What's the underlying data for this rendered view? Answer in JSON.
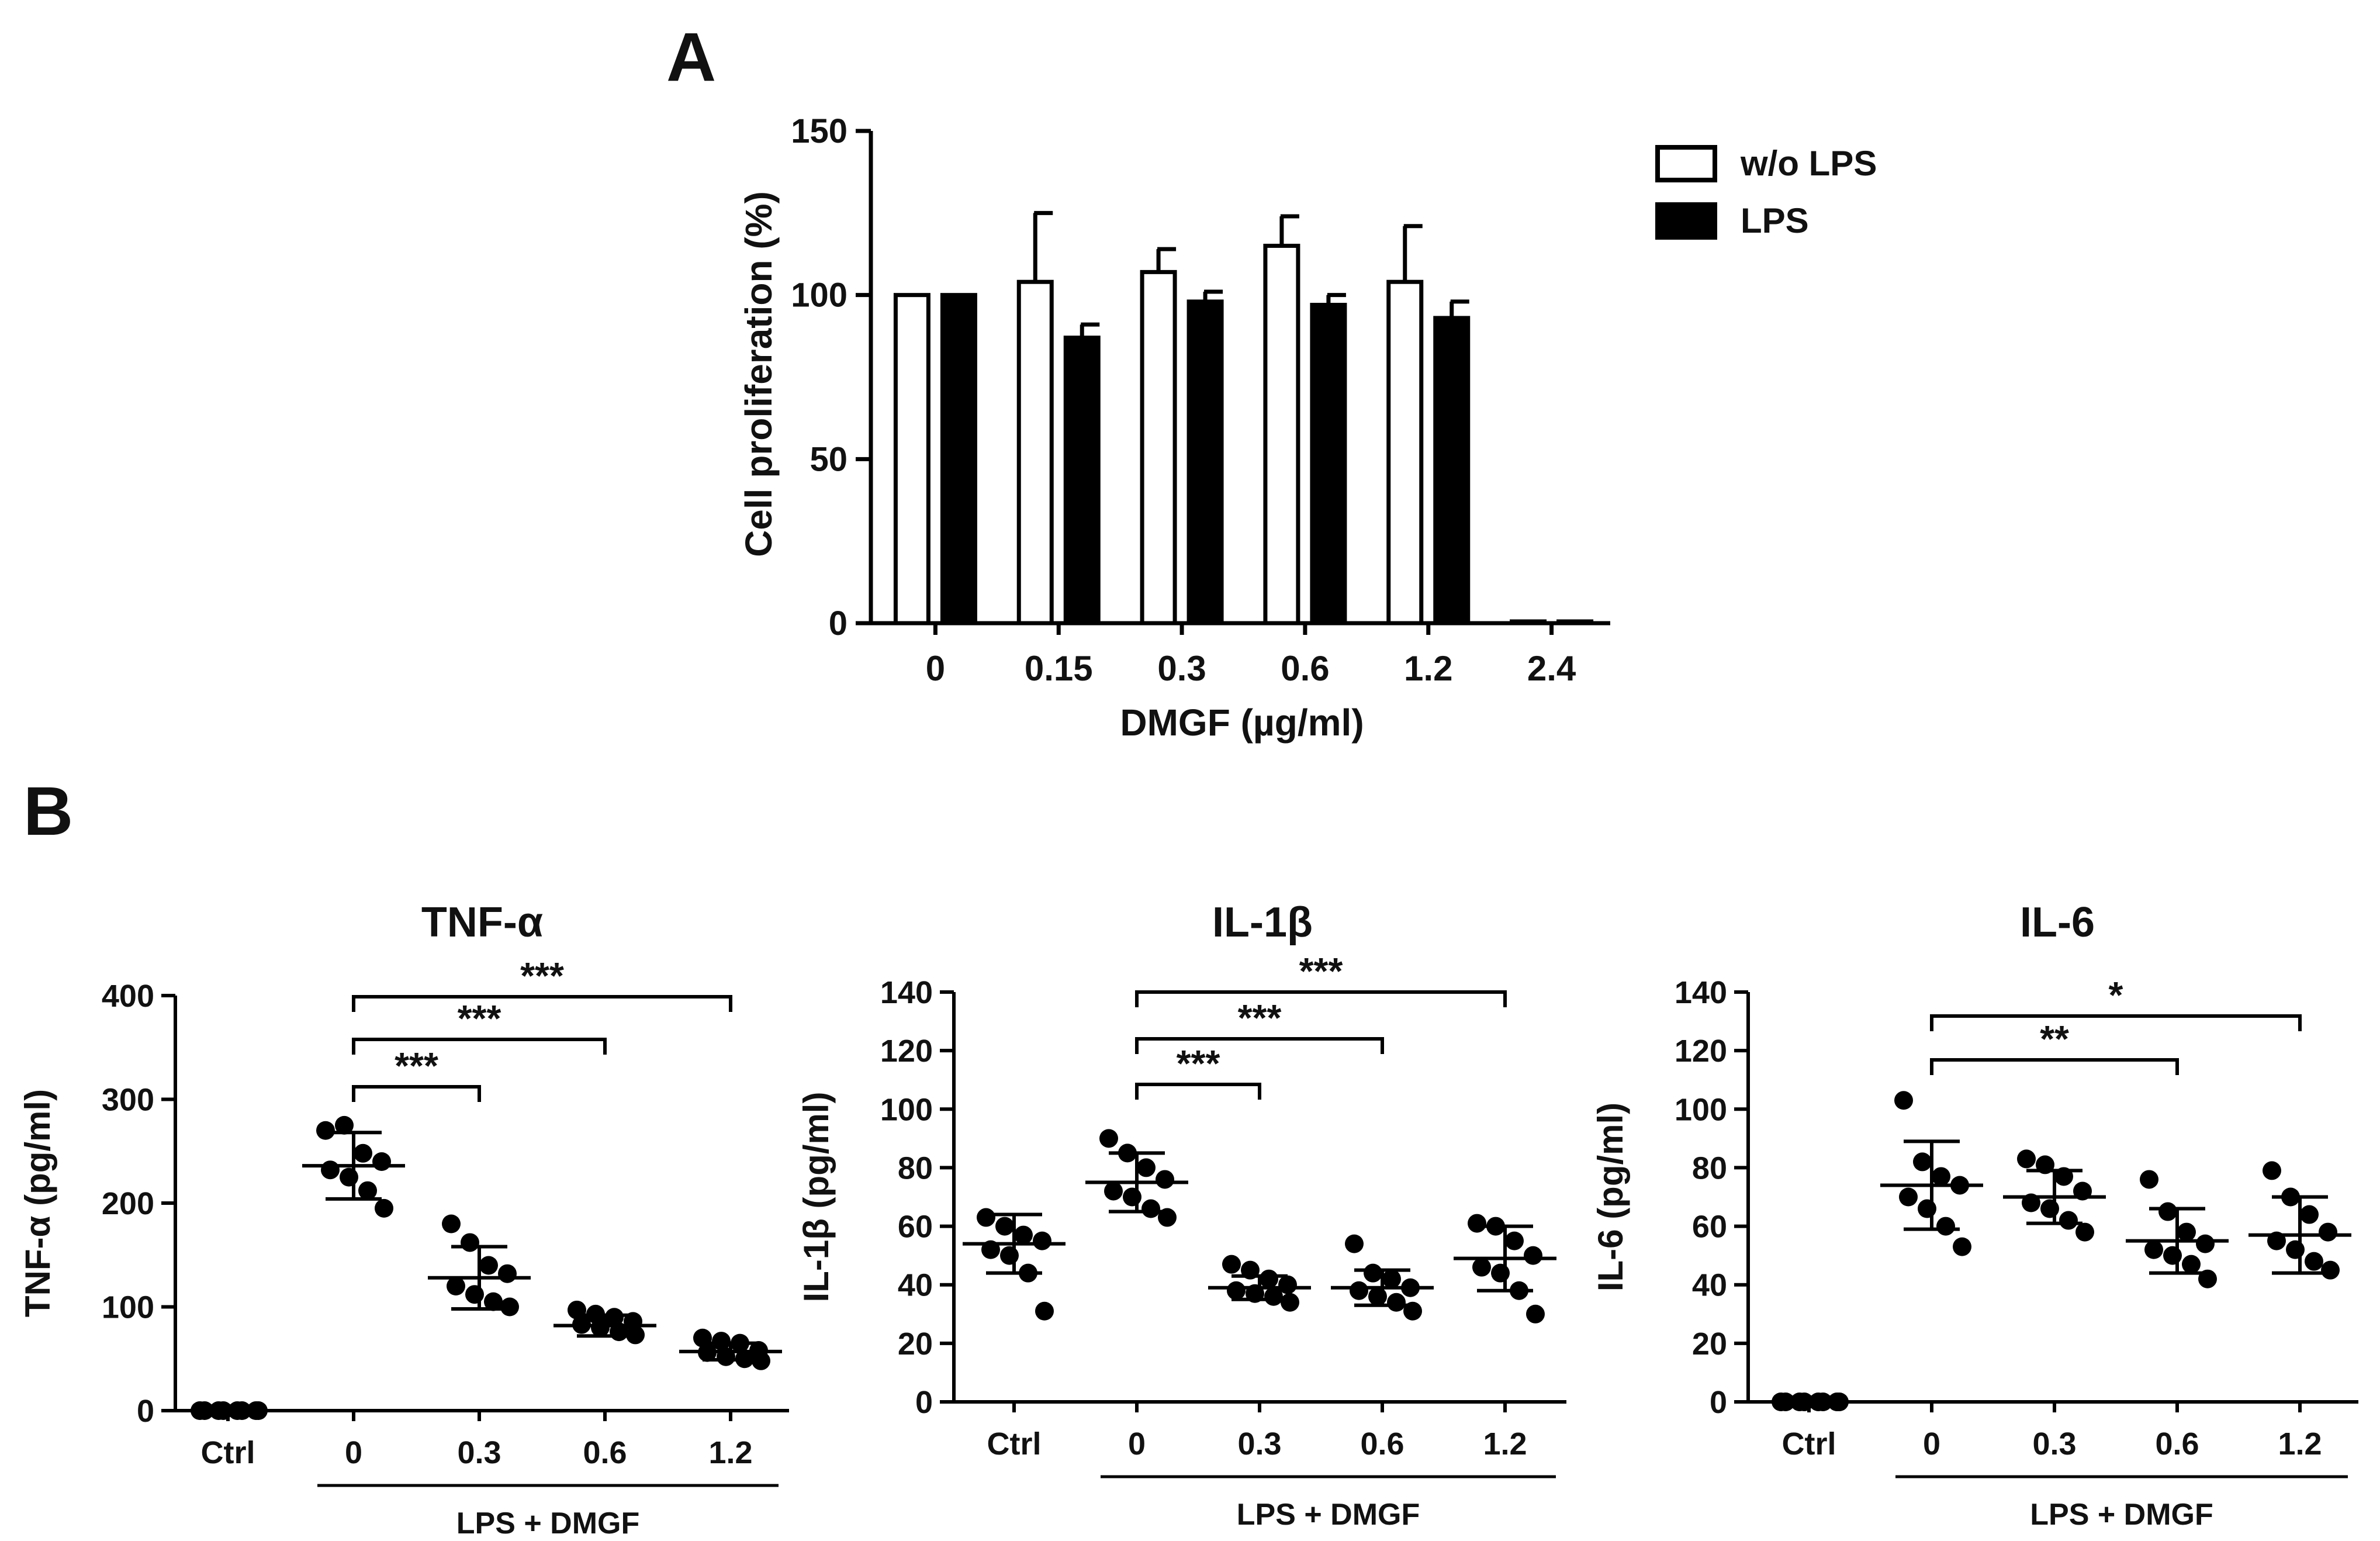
{
  "panels": {
    "a": "A",
    "b": "B"
  },
  "chart_data": [
    {
      "id": "A",
      "type": "bar",
      "title": "",
      "categories": [
        "0",
        "0.15",
        "0.3",
        "0.6",
        "1.2",
        "2.4"
      ],
      "series": [
        {
          "name": "w/o LPS",
          "fill": "#ffffff",
          "values": [
            100,
            104,
            107,
            115,
            104,
            0
          ],
          "errors": [
            0,
            21,
            7,
            9,
            17,
            0
          ]
        },
        {
          "name": "LPS",
          "fill": "#000000",
          "values": [
            100,
            87,
            98,
            97,
            93,
            0
          ],
          "errors": [
            0,
            4,
            3,
            3,
            5,
            0
          ]
        }
      ],
      "xlabel": "DMGF (µg/ml)",
      "ylabel": "Cell proliferation (%)",
      "ylim": [
        0,
        150
      ],
      "yticks": [
        "0",
        "50",
        "100",
        "150"
      ],
      "legend_position": "top-right"
    },
    {
      "id": "B1",
      "type": "scatter",
      "title": "TNF-α",
      "ylabel": "TNF-α (pg/ml)",
      "ylim": [
        0,
        400
      ],
      "yticks": [
        "0",
        "100",
        "200",
        "300",
        "400"
      ],
      "categories": [
        "Ctrl",
        "0",
        "0.3",
        "0.6",
        "1.2"
      ],
      "group_label": "LPS + DMGF",
      "groups": [
        {
          "mean": 0,
          "sd": 0,
          "points": [
            0,
            0,
            0,
            0,
            0,
            0,
            0,
            0
          ]
        },
        {
          "mean": 236,
          "sd": 32,
          "points": [
            270,
            275,
            248,
            240,
            232,
            225,
            212,
            195
          ]
        },
        {
          "mean": 128,
          "sd": 30,
          "points": [
            180,
            162,
            140,
            132,
            120,
            112,
            105,
            100
          ]
        },
        {
          "mean": 82,
          "sd": 10,
          "points": [
            97,
            93,
            90,
            86,
            83,
            80,
            76,
            73
          ]
        },
        {
          "mean": 57,
          "sd": 8,
          "points": [
            70,
            67,
            65,
            58,
            56,
            52,
            50,
            48
          ]
        }
      ],
      "comparisons": [
        {
          "from": "0",
          "to": "0.3",
          "label": "***"
        },
        {
          "from": "0",
          "to": "0.6",
          "label": "***"
        },
        {
          "from": "0",
          "to": "1.2",
          "label": "***"
        }
      ]
    },
    {
      "id": "B2",
      "type": "scatter",
      "title": "IL-1β",
      "ylabel": "IL-1β (pg/ml)",
      "ylim": [
        0,
        140
      ],
      "yticks": [
        "0",
        "20",
        "40",
        "60",
        "80",
        "100",
        "120",
        "140"
      ],
      "categories": [
        "Ctrl",
        "0",
        "0.3",
        "0.6",
        "1.2"
      ],
      "group_label": "LPS + DMGF",
      "groups": [
        {
          "mean": 54,
          "sd": 10,
          "points": [
            63,
            60,
            57,
            55,
            52,
            50,
            44,
            31
          ]
        },
        {
          "mean": 75,
          "sd": 10,
          "points": [
            90,
            85,
            80,
            76,
            72,
            70,
            66,
            63
          ]
        },
        {
          "mean": 39,
          "sd": 4,
          "points": [
            47,
            45,
            42,
            40,
            38,
            37,
            36,
            34
          ]
        },
        {
          "mean": 39,
          "sd": 6,
          "points": [
            54,
            44,
            42,
            39,
            38,
            36,
            34,
            31
          ]
        },
        {
          "mean": 49,
          "sd": 11,
          "points": [
            61,
            60,
            55,
            50,
            46,
            44,
            38,
            30
          ]
        }
      ],
      "comparisons": [
        {
          "from": "0",
          "to": "0.3",
          "label": "***"
        },
        {
          "from": "0",
          "to": "0.6",
          "label": "***"
        },
        {
          "from": "0",
          "to": "1.2",
          "label": "***"
        }
      ]
    },
    {
      "id": "B3",
      "type": "scatter",
      "title": "IL-6",
      "ylabel": "IL-6 (pg/ml)",
      "ylim": [
        0,
        140
      ],
      "yticks": [
        "0",
        "20",
        "40",
        "60",
        "80",
        "100",
        "120",
        "140"
      ],
      "categories": [
        "Ctrl",
        "0",
        "0.3",
        "0.6",
        "1.2"
      ],
      "group_label": "LPS + DMGF",
      "groups": [
        {
          "mean": 0,
          "sd": 0,
          "points": [
            0,
            0,
            0,
            0,
            0,
            0,
            0,
            0
          ]
        },
        {
          "mean": 74,
          "sd": 15,
          "points": [
            103,
            82,
            77,
            74,
            70,
            66,
            60,
            53
          ]
        },
        {
          "mean": 70,
          "sd": 9,
          "points": [
            83,
            81,
            77,
            72,
            68,
            66,
            62,
            58
          ]
        },
        {
          "mean": 55,
          "sd": 11,
          "points": [
            76,
            65,
            58,
            54,
            52,
            50,
            47,
            42
          ]
        },
        {
          "mean": 57,
          "sd": 13,
          "points": [
            79,
            70,
            64,
            58,
            55,
            52,
            48,
            45
          ]
        }
      ],
      "comparisons": [
        {
          "from": "0",
          "to": "0.6",
          "label": "**"
        },
        {
          "from": "0",
          "to": "1.2",
          "label": "*"
        }
      ]
    }
  ]
}
